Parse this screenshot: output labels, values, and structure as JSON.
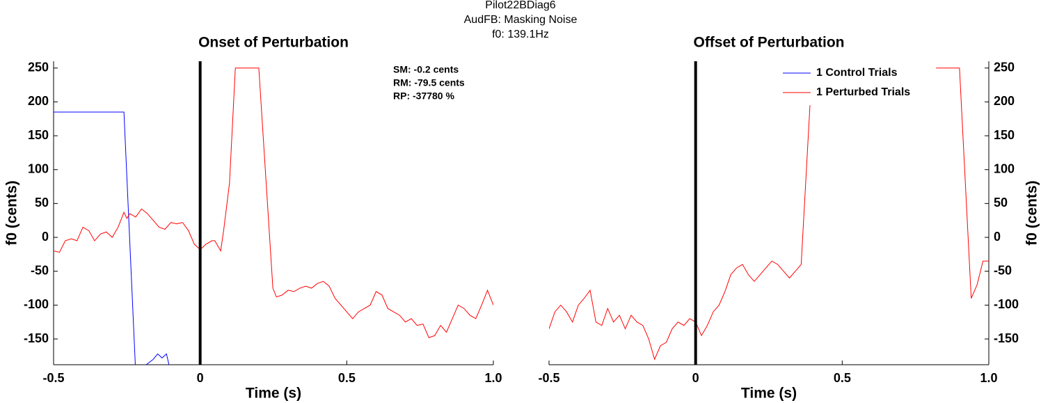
{
  "suptitle": [
    "Pilot22BDiag6",
    "AudFB: Masking Noise",
    "f0: 139.1Hz"
  ],
  "chart_data": [
    {
      "type": "line",
      "title": "Onset of Perturbation",
      "xlabel": "Time (s)",
      "ylabel": "f0 (cents)",
      "xlim": [
        -0.5,
        1
      ],
      "ylim": [
        -188,
        260
      ],
      "xticks": [
        -0.5,
        0,
        0.5,
        {
          "value": 1,
          "label": "1.0"
        }
      ],
      "yticks": [
        -150,
        -100,
        -50,
        0,
        50,
        100,
        150,
        200,
        250
      ],
      "yaxis_side": "left",
      "vline": 0,
      "annotations": [
        "SM: -0.2 cents",
        "RM: -79.5 cents",
        "RP: -37780 %"
      ],
      "series": [
        {
          "color": "#0000ff",
          "x": [
            -0.5,
            -0.26,
            -0.22,
            -0.16,
            -0.145,
            -0.13,
            -0.115,
            -0.1
          ],
          "values": [
            185,
            185,
            -200,
            -180,
            -172,
            -178,
            -172,
            -200
          ]
        },
        {
          "color": "#ff0000",
          "x": [
            -0.5,
            -0.48,
            -0.46,
            -0.44,
            -0.42,
            -0.4,
            -0.38,
            -0.36,
            -0.34,
            -0.32,
            -0.3,
            -0.28,
            -0.26,
            -0.25,
            -0.24,
            -0.22,
            -0.2,
            -0.18,
            -0.16,
            -0.14,
            -0.12,
            -0.1,
            -0.08,
            -0.06,
            -0.04,
            -0.02,
            0,
            0.02,
            0.04,
            0.05,
            0.07,
            0.08,
            0.1,
            0.12,
            0.2,
            0.248,
            0.26,
            0.28,
            0.3,
            0.32,
            0.34,
            0.36,
            0.38,
            0.4,
            0.42,
            0.44,
            0.46,
            0.48,
            0.5,
            0.52,
            0.54,
            0.56,
            0.58,
            0.6,
            0.62,
            0.64,
            0.66,
            0.68,
            0.7,
            0.72,
            0.74,
            0.76,
            0.78,
            0.8,
            0.82,
            0.84,
            0.86,
            0.88,
            0.9,
            0.92,
            0.94,
            0.96,
            0.98,
            1
          ],
          "values": [
            -20,
            -22,
            -5,
            -2,
            -5,
            15,
            10,
            -5,
            5,
            8,
            0,
            15,
            37,
            28,
            35,
            30,
            42,
            35,
            25,
            15,
            12,
            22,
            20,
            22,
            10,
            -10,
            -18,
            -10,
            -5,
            -5,
            -20,
            10,
            80,
            250,
            250,
            -75,
            -88,
            -85,
            -78,
            -80,
            -75,
            -72,
            -75,
            -68,
            -65,
            -72,
            -90,
            -100,
            -110,
            -120,
            -110,
            -105,
            -100,
            -80,
            -85,
            -105,
            -110,
            -115,
            -125,
            -120,
            -130,
            -128,
            -148,
            -145,
            -130,
            -140,
            -120,
            -100,
            -105,
            -115,
            -120,
            -100,
            -78,
            -100
          ]
        }
      ]
    },
    {
      "type": "line",
      "title": "Offset of Perturbation",
      "xlabel": "Time (s)",
      "ylabel": "f0 (cents)",
      "xlim": [
        -0.5,
        1
      ],
      "ylim": [
        -188,
        260
      ],
      "xticks": [
        -0.5,
        0,
        0.5,
        {
          "value": 1,
          "label": "1.0"
        }
      ],
      "yticks": [
        -150,
        -100,
        -50,
        0,
        50,
        100,
        150,
        200,
        250
      ],
      "yaxis_side": "right",
      "vline": 0,
      "legend": "top-right",
      "series": [
        {
          "name": "1 Control Trials",
          "color": "#0000ff",
          "x": [],
          "values": []
        },
        {
          "name": "1 Perturbed Trials",
          "color": "#ff0000",
          "x": [
            -0.5,
            -0.48,
            -0.46,
            -0.44,
            -0.42,
            -0.4,
            -0.38,
            -0.36,
            -0.34,
            -0.32,
            -0.3,
            -0.28,
            -0.26,
            -0.24,
            -0.22,
            -0.2,
            -0.18,
            -0.16,
            -0.14,
            -0.12,
            -0.1,
            -0.08,
            -0.06,
            -0.04,
            -0.02,
            0,
            0.02,
            0.04,
            0.06,
            0.08,
            0.1,
            0.12,
            0.14,
            0.16,
            0.18,
            0.2,
            0.22,
            0.24,
            0.26,
            0.28,
            0.3,
            0.32,
            0.34,
            0.36,
            0.39,
            0.6,
            0.82,
            0.9,
            0.94,
            0.96,
            0.98,
            1
          ],
          "values": [
            -135,
            -110,
            -100,
            -110,
            -125,
            -100,
            -90,
            -78,
            -125,
            -130,
            -105,
            -125,
            -115,
            -135,
            -115,
            -125,
            -130,
            -150,
            -180,
            -160,
            -155,
            -135,
            -125,
            -130,
            -120,
            -125,
            -145,
            -130,
            -110,
            -100,
            -80,
            -55,
            -45,
            -40,
            -55,
            -65,
            -55,
            -45,
            -35,
            -40,
            -50,
            -60,
            -50,
            -40,
            195,
            null,
            250,
            250,
            -90,
            -70,
            -35,
            -35
          ]
        }
      ]
    }
  ]
}
